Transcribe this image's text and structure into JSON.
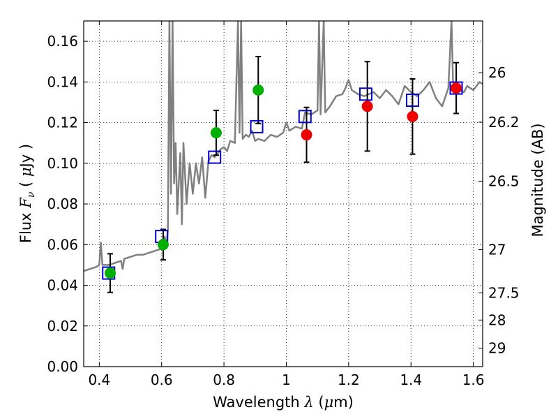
{
  "chart_data": {
    "type": "scatter",
    "xlabel": "Wavelength  λ (μm)",
    "ylabel": "Flux  F_ν  ( μJy )",
    "y2label": "Magnitude (AB)",
    "xlim": [
      0.35,
      1.63
    ],
    "ylim": [
      0.0,
      0.17
    ],
    "grid": true,
    "x_ticks": [
      0.4,
      0.6,
      0.8,
      1.0,
      1.2,
      1.4,
      1.6
    ],
    "x_tick_labels": [
      "0.4",
      "0.6",
      "0.8",
      "1",
      "1.2",
      "1.4",
      "1.6"
    ],
    "y_ticks": [
      0.0,
      0.02,
      0.04,
      0.06,
      0.08,
      0.1,
      0.12,
      0.14,
      0.16
    ],
    "y_tick_labels": [
      "0.00",
      "0.02",
      "0.04",
      "0.06",
      "0.08",
      "0.10",
      "0.12",
      "0.14",
      "0.16"
    ],
    "y2_tick_labels": [
      "26",
      "26.2",
      "26.5",
      "27",
      "27.5",
      "28",
      "29"
    ],
    "series": [
      {
        "kind": "line",
        "color": "#808080",
        "points": [
          [
            0.35,
            0.047
          ],
          [
            0.37,
            0.048
          ],
          [
            0.39,
            0.049
          ],
          [
            0.4,
            0.05
          ],
          [
            0.405,
            0.061
          ],
          [
            0.41,
            0.05
          ],
          [
            0.43,
            0.05
          ],
          [
            0.45,
            0.051
          ],
          [
            0.47,
            0.052
          ],
          [
            0.475,
            0.048
          ],
          [
            0.48,
            0.053
          ],
          [
            0.5,
            0.054
          ],
          [
            0.52,
            0.055
          ],
          [
            0.54,
            0.055
          ],
          [
            0.56,
            0.056
          ],
          [
            0.58,
            0.057
          ],
          [
            0.6,
            0.058
          ],
          [
            0.61,
            0.064
          ],
          [
            0.615,
            0.059
          ],
          [
            0.62,
            0.067
          ],
          [
            0.625,
            0.17
          ],
          [
            0.63,
            0.085
          ],
          [
            0.635,
            0.17
          ],
          [
            0.64,
            0.09
          ],
          [
            0.645,
            0.11
          ],
          [
            0.65,
            0.075
          ],
          [
            0.66,
            0.105
          ],
          [
            0.665,
            0.07
          ],
          [
            0.67,
            0.11
          ],
          [
            0.68,
            0.08
          ],
          [
            0.69,
            0.1
          ],
          [
            0.7,
            0.085
          ],
          [
            0.71,
            0.1
          ],
          [
            0.72,
            0.09
          ],
          [
            0.73,
            0.103
          ],
          [
            0.74,
            0.083
          ],
          [
            0.75,
            0.101
          ],
          [
            0.76,
            0.104
          ],
          [
            0.77,
            0.103
          ],
          [
            0.78,
            0.105
          ],
          [
            0.79,
            0.107
          ],
          [
            0.8,
            0.108
          ],
          [
            0.81,
            0.106
          ],
          [
            0.82,
            0.111
          ],
          [
            0.835,
            0.11
          ],
          [
            0.845,
            0.17
          ],
          [
            0.85,
            0.115
          ],
          [
            0.855,
            0.17
          ],
          [
            0.86,
            0.112
          ],
          [
            0.87,
            0.114
          ],
          [
            0.88,
            0.113
          ],
          [
            0.89,
            0.116
          ],
          [
            0.9,
            0.111
          ],
          [
            0.91,
            0.112
          ],
          [
            0.93,
            0.111
          ],
          [
            0.95,
            0.114
          ],
          [
            0.97,
            0.113
          ],
          [
            0.99,
            0.115
          ],
          [
            1.0,
            0.12
          ],
          [
            1.01,
            0.116
          ],
          [
            1.03,
            0.118
          ],
          [
            1.05,
            0.117
          ],
          [
            1.06,
            0.125
          ],
          [
            1.08,
            0.124
          ],
          [
            1.1,
            0.126
          ],
          [
            1.105,
            0.17
          ],
          [
            1.11,
            0.124
          ],
          [
            1.12,
            0.17
          ],
          [
            1.125,
            0.125
          ],
          [
            1.14,
            0.128
          ],
          [
            1.16,
            0.133
          ],
          [
            1.18,
            0.134
          ],
          [
            1.19,
            0.137
          ],
          [
            1.2,
            0.141
          ],
          [
            1.21,
            0.136
          ],
          [
            1.23,
            0.134
          ],
          [
            1.25,
            0.133
          ],
          [
            1.28,
            0.135
          ],
          [
            1.3,
            0.132
          ],
          [
            1.32,
            0.136
          ],
          [
            1.34,
            0.133
          ],
          [
            1.36,
            0.129
          ],
          [
            1.38,
            0.138
          ],
          [
            1.4,
            0.135
          ],
          [
            1.42,
            0.133
          ],
          [
            1.44,
            0.136
          ],
          [
            1.46,
            0.14
          ],
          [
            1.48,
            0.132
          ],
          [
            1.5,
            0.128
          ],
          [
            1.52,
            0.137
          ],
          [
            1.53,
            0.17
          ],
          [
            1.535,
            0.14
          ],
          [
            1.55,
            0.136
          ],
          [
            1.57,
            0.135
          ],
          [
            1.58,
            0.138
          ],
          [
            1.6,
            0.136
          ],
          [
            1.62,
            0.14
          ],
          [
            1.63,
            0.139
          ]
        ]
      },
      {
        "kind": "model-photometry",
        "marker": "open-square",
        "color": "#0000cc",
        "x": [
          0.43,
          0.6,
          0.77,
          0.905,
          1.06,
          1.255,
          1.405,
          1.545
        ],
        "y": [
          0.046,
          0.064,
          0.103,
          0.118,
          0.123,
          0.134,
          0.131,
          0.137
        ]
      },
      {
        "kind": "observed-detections",
        "marker": "filled-circle",
        "color": "#00b000",
        "x": [
          0.435,
          0.605,
          0.775,
          0.91
        ],
        "y": [
          0.046,
          0.06,
          0.115,
          0.136
        ],
        "yerr": [
          0.0095,
          0.0075,
          0.011,
          0.0165
        ]
      },
      {
        "kind": "observed-upper",
        "marker": "filled-circle",
        "color": "#ee0000",
        "x": [
          1.065,
          1.26,
          1.405,
          1.545
        ],
        "y": [
          0.114,
          0.128,
          0.123,
          0.137
        ],
        "yerr": [
          0.0135,
          0.022,
          0.0185,
          0.0125
        ]
      }
    ]
  }
}
